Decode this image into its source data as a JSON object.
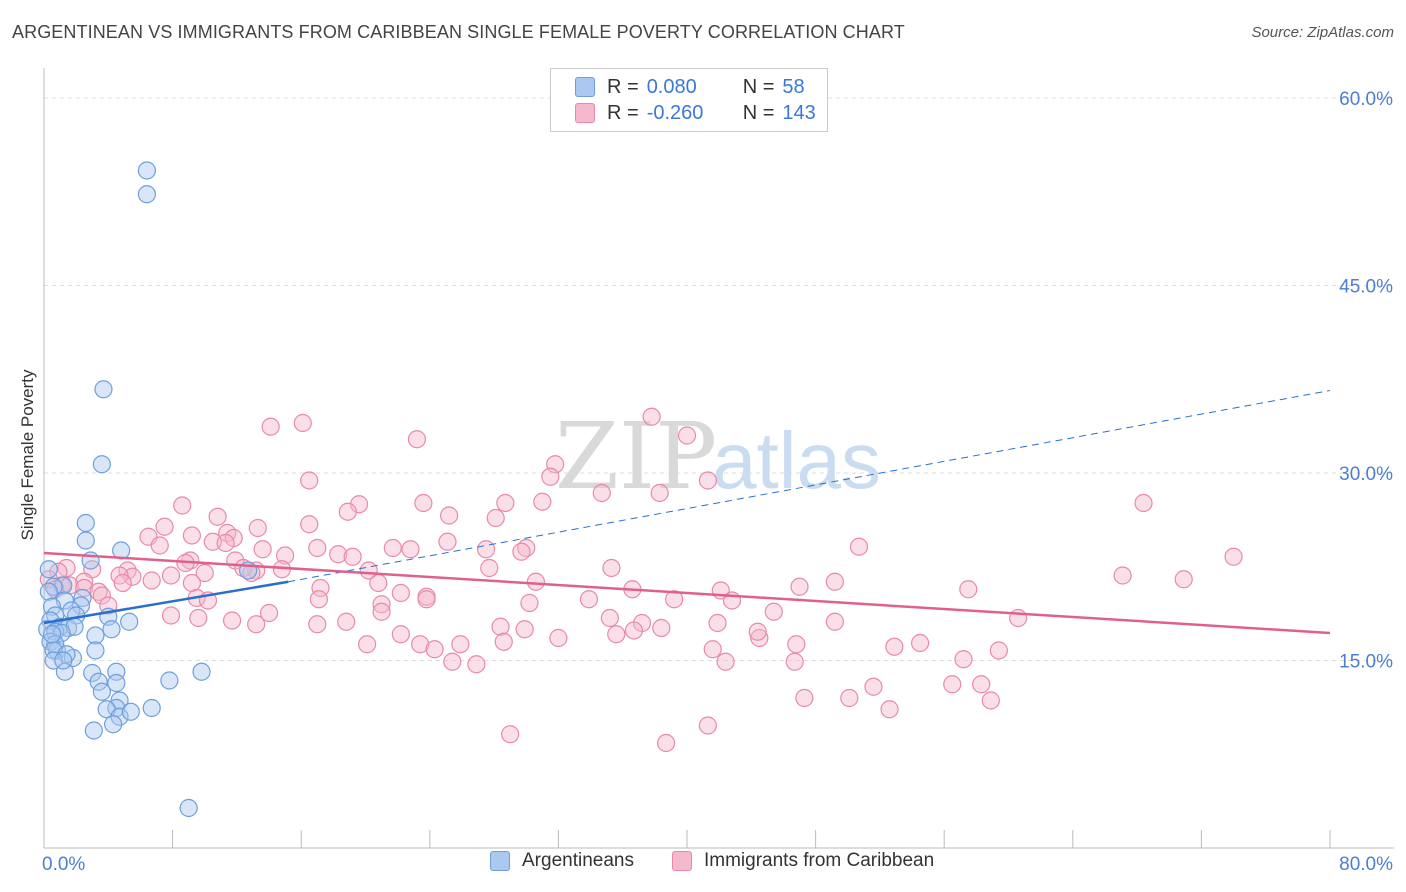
{
  "title": "ARGENTINEAN VS IMMIGRANTS FROM CARIBBEAN SINGLE FEMALE POVERTY CORRELATION CHART",
  "source": "Source: ZipAtlas.com",
  "watermark": {
    "zip": "ZIP",
    "atlas": "atlas"
  },
  "colors": {
    "blue_fill": "#aac8f0",
    "blue_stroke": "#6d9fdc",
    "blue_line": "#2a6fcc",
    "pink_fill": "#f5b8cc",
    "pink_stroke": "#e889a8",
    "pink_line": "#e0608c",
    "tick_label": "#4a7fd4",
    "grid": "#dddddd"
  },
  "legend_top": [
    {
      "swatch": "blue",
      "r_label": "R =",
      "r_value": "0.080",
      "n_label": "N =",
      "n_value": "58"
    },
    {
      "swatch": "pink",
      "r_label": "R =",
      "r_value": "-0.260",
      "n_label": "N =",
      "n_value": "143"
    }
  ],
  "legend_bottom": [
    {
      "swatch": "blue",
      "label": "Argentineans"
    },
    {
      "swatch": "pink",
      "label": "Immigrants from Caribbean"
    }
  ],
  "chart_data": {
    "type": "scatter",
    "title": "ARGENTINEAN VS IMMIGRANTS FROM CARIBBEAN SINGLE FEMALE POVERTY CORRELATION CHART",
    "xlabel": "",
    "ylabel": "Single Female Poverty",
    "xlim": [
      0,
      80
    ],
    "ylim": [
      0,
      60
    ],
    "x_ticks": [
      {
        "value": 0,
        "label": "0.0%"
      },
      {
        "value": 80,
        "label": "80.0%"
      }
    ],
    "y_ticks": [
      {
        "value": 15,
        "label": "15.0%"
      },
      {
        "value": 30,
        "label": "30.0%"
      },
      {
        "value": 45,
        "label": "45.0%"
      },
      {
        "value": 60,
        "label": "60.0%"
      }
    ],
    "x_minor_ticks": [
      0,
      8,
      16,
      24,
      32,
      40,
      48,
      56,
      64,
      72,
      80
    ],
    "grid": true,
    "series": [
      {
        "name": "Argentineans",
        "color": "blue",
        "trend": {
          "x0": 0,
          "y0": 18.0,
          "x1": 15.2,
          "y1": 21.3,
          "dash_to_x": 80,
          "dash_to_y": 36.6
        },
        "points": [
          [
            6.4,
            54.2
          ],
          [
            6.4,
            52.3
          ],
          [
            3.7,
            36.7
          ],
          [
            3.6,
            30.7
          ],
          [
            2.6,
            26.0
          ],
          [
            2.6,
            24.6
          ],
          [
            4.8,
            23.8
          ],
          [
            2.9,
            23.0
          ],
          [
            0.3,
            22.3
          ],
          [
            12.7,
            22.2
          ],
          [
            1.2,
            21.0
          ],
          [
            0.6,
            20.9
          ],
          [
            0.3,
            20.5
          ],
          [
            2.4,
            20.0
          ],
          [
            1.3,
            19.8
          ],
          [
            0.5,
            19.3
          ],
          [
            2.3,
            19.4
          ],
          [
            1.7,
            19.0
          ],
          [
            0.7,
            18.6
          ],
          [
            2.0,
            18.6
          ],
          [
            5.3,
            18.1
          ],
          [
            0.4,
            18.2
          ],
          [
            4.0,
            18.5
          ],
          [
            1.0,
            17.7
          ],
          [
            1.5,
            17.6
          ],
          [
            0.2,
            17.5
          ],
          [
            0.7,
            17.3
          ],
          [
            4.2,
            17.5
          ],
          [
            1.9,
            17.7
          ],
          [
            1.1,
            17.2
          ],
          [
            3.2,
            17.0
          ],
          [
            0.4,
            16.5
          ],
          [
            0.8,
            15.8
          ],
          [
            0.7,
            16.3
          ],
          [
            0.6,
            15.8
          ],
          [
            3.2,
            15.8
          ],
          [
            1.8,
            15.2
          ],
          [
            1.4,
            15.5
          ],
          [
            0.6,
            15.0
          ],
          [
            1.3,
            14.1
          ],
          [
            3.0,
            14.0
          ],
          [
            4.5,
            14.1
          ],
          [
            9.8,
            14.1
          ],
          [
            7.8,
            13.4
          ],
          [
            3.4,
            13.3
          ],
          [
            4.5,
            13.2
          ],
          [
            3.6,
            12.5
          ],
          [
            4.7,
            11.8
          ],
          [
            4.5,
            11.2
          ],
          [
            6.7,
            11.2
          ],
          [
            3.9,
            11.1
          ],
          [
            4.7,
            10.5
          ],
          [
            5.4,
            10.9
          ],
          [
            4.3,
            9.9
          ],
          [
            3.1,
            9.4
          ],
          [
            9.0,
            3.2
          ],
          [
            0.5,
            17.1
          ],
          [
            1.2,
            15.0
          ]
        ]
      },
      {
        "name": "Immigrants from Caribbean",
        "color": "pink",
        "trend": {
          "x0": 0,
          "y0": 23.6,
          "x1": 80,
          "y1": 17.2
        },
        "points": [
          [
            37.8,
            34.5
          ],
          [
            16.1,
            34.0
          ],
          [
            14.1,
            33.7
          ],
          [
            23.2,
            32.7
          ],
          [
            40.0,
            33.0
          ],
          [
            31.8,
            30.7
          ],
          [
            16.5,
            29.4
          ],
          [
            31.5,
            29.7
          ],
          [
            41.3,
            29.4
          ],
          [
            34.7,
            28.4
          ],
          [
            38.3,
            28.4
          ],
          [
            68.4,
            27.6
          ],
          [
            8.6,
            27.4
          ],
          [
            19.6,
            27.5
          ],
          [
            23.6,
            27.6
          ],
          [
            28.7,
            27.6
          ],
          [
            31.0,
            27.7
          ],
          [
            18.9,
            26.9
          ],
          [
            28.1,
            26.4
          ],
          [
            10.8,
            26.5
          ],
          [
            25.2,
            26.6
          ],
          [
            16.5,
            25.9
          ],
          [
            7.5,
            25.7
          ],
          [
            13.3,
            25.6
          ],
          [
            9.2,
            25.0
          ],
          [
            11.4,
            25.2
          ],
          [
            11.8,
            24.8
          ],
          [
            6.5,
            24.9
          ],
          [
            10.5,
            24.5
          ],
          [
            17.0,
            24.0
          ],
          [
            11.3,
            24.4
          ],
          [
            25.1,
            24.5
          ],
          [
            21.7,
            24.0
          ],
          [
            22.8,
            23.9
          ],
          [
            13.6,
            23.9
          ],
          [
            27.5,
            23.9
          ],
          [
            7.2,
            24.2
          ],
          [
            30.0,
            24.0
          ],
          [
            29.7,
            23.7
          ],
          [
            50.7,
            24.1
          ],
          [
            15.0,
            23.4
          ],
          [
            18.3,
            23.5
          ],
          [
            19.2,
            23.3
          ],
          [
            9.1,
            23.0
          ],
          [
            8.8,
            22.8
          ],
          [
            11.9,
            23.0
          ],
          [
            74.0,
            23.3
          ],
          [
            1.4,
            22.4
          ],
          [
            3.0,
            22.3
          ],
          [
            27.7,
            22.4
          ],
          [
            13.2,
            22.2
          ],
          [
            14.8,
            22.3
          ],
          [
            20.2,
            22.2
          ],
          [
            35.3,
            22.4
          ],
          [
            0.9,
            22.1
          ],
          [
            5.2,
            22.2
          ],
          [
            10.0,
            22.0
          ],
          [
            12.4,
            22.4
          ],
          [
            7.9,
            21.8
          ],
          [
            12.9,
            22.0
          ],
          [
            0.3,
            21.5
          ],
          [
            5.5,
            21.7
          ],
          [
            4.7,
            21.8
          ],
          [
            2.5,
            21.3
          ],
          [
            1.1,
            21.0
          ],
          [
            4.9,
            21.2
          ],
          [
            6.7,
            21.4
          ],
          [
            1.6,
            21.0
          ],
          [
            2.5,
            20.8
          ],
          [
            9.2,
            21.2
          ],
          [
            20.8,
            21.2
          ],
          [
            36.6,
            20.7
          ],
          [
            47.0,
            20.9
          ],
          [
            67.1,
            21.8
          ],
          [
            70.9,
            21.5
          ],
          [
            3.4,
            20.5
          ],
          [
            17.2,
            20.8
          ],
          [
            22.2,
            20.4
          ],
          [
            23.8,
            20.1
          ],
          [
            30.6,
            21.3
          ],
          [
            42.1,
            20.6
          ],
          [
            57.5,
            20.7
          ],
          [
            0.7,
            20.7
          ],
          [
            3.6,
            20.2
          ],
          [
            9.5,
            20.0
          ],
          [
            17.1,
            19.9
          ],
          [
            23.8,
            19.9
          ],
          [
            10.2,
            19.8
          ],
          [
            21.0,
            19.5
          ],
          [
            30.2,
            19.6
          ],
          [
            33.9,
            19.9
          ],
          [
            39.2,
            19.9
          ],
          [
            42.8,
            19.8
          ],
          [
            4.0,
            19.4
          ],
          [
            7.9,
            18.6
          ],
          [
            14.0,
            18.8
          ],
          [
            21.0,
            18.9
          ],
          [
            35.2,
            18.4
          ],
          [
            45.4,
            18.9
          ],
          [
            60.6,
            18.4
          ],
          [
            9.6,
            18.4
          ],
          [
            11.7,
            18.2
          ],
          [
            17.0,
            17.9
          ],
          [
            18.8,
            18.1
          ],
          [
            13.2,
            17.9
          ],
          [
            28.4,
            17.7
          ],
          [
            37.2,
            18.0
          ],
          [
            41.9,
            18.0
          ],
          [
            49.2,
            18.1
          ],
          [
            29.9,
            17.5
          ],
          [
            32.0,
            16.8
          ],
          [
            35.6,
            17.1
          ],
          [
            44.5,
            16.8
          ],
          [
            46.8,
            16.3
          ],
          [
            20.1,
            16.3
          ],
          [
            23.4,
            16.3
          ],
          [
            25.9,
            16.3
          ],
          [
            28.6,
            16.5
          ],
          [
            36.7,
            17.4
          ],
          [
            54.5,
            16.4
          ],
          [
            24.3,
            15.9
          ],
          [
            41.6,
            15.9
          ],
          [
            52.9,
            16.1
          ],
          [
            59.4,
            15.8
          ],
          [
            57.2,
            15.1
          ],
          [
            42.4,
            14.9
          ],
          [
            46.7,
            14.9
          ],
          [
            51.6,
            12.9
          ],
          [
            26.9,
            14.7
          ],
          [
            56.5,
            13.1
          ],
          [
            58.3,
            13.1
          ],
          [
            50.1,
            12.0
          ],
          [
            47.3,
            12.0
          ],
          [
            52.6,
            11.1
          ],
          [
            58.9,
            11.8
          ],
          [
            41.3,
            9.8
          ],
          [
            38.7,
            8.4
          ],
          [
            29.0,
            9.1
          ],
          [
            25.4,
            14.9
          ],
          [
            22.2,
            17.1
          ],
          [
            38.4,
            17.6
          ],
          [
            49.2,
            21.3
          ],
          [
            44.4,
            17.3
          ]
        ]
      }
    ]
  }
}
